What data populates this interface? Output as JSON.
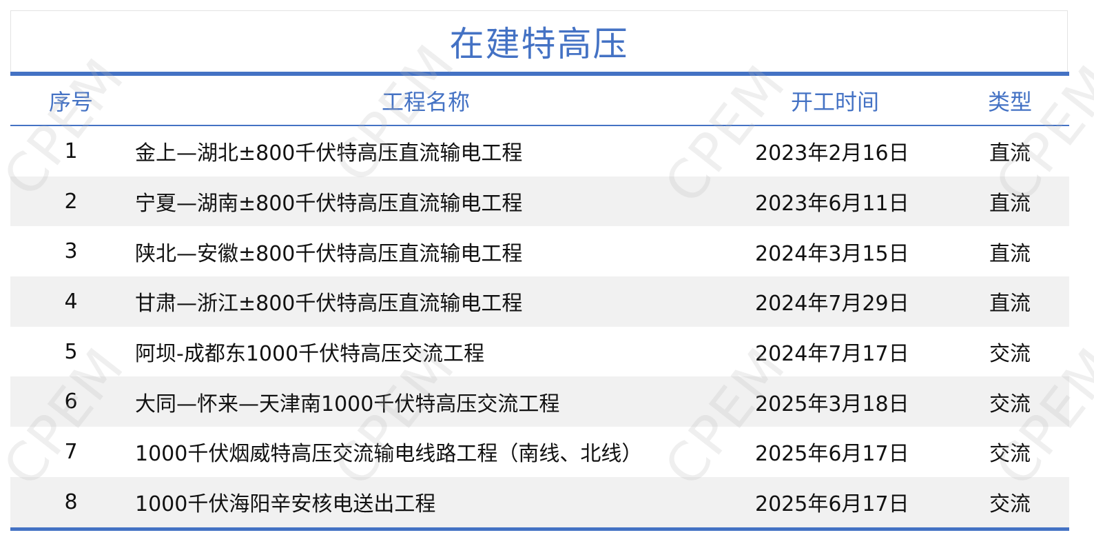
{
  "title": "在建特高压",
  "watermark": "CPEM",
  "colors": {
    "accent": "#4472c4",
    "stripe": "#f1f1f1"
  },
  "headers": {
    "seq": "序号",
    "name": "工程名称",
    "date": "开工时间",
    "type": "类型"
  },
  "rows": [
    {
      "seq": "1",
      "name": "金上—湖北±800千伏特高压直流输电工程",
      "date": "2023年2月16日",
      "type": "直流"
    },
    {
      "seq": "2",
      "name": "宁夏—湖南±800千伏特高压直流输电工程",
      "date": "2023年6月11日",
      "type": "直流"
    },
    {
      "seq": "3",
      "name": "陕北—安徽±800千伏特高压直流输电工程",
      "date": "2024年3月15日",
      "type": "直流"
    },
    {
      "seq": "4",
      "name": "甘肃—浙江±800千伏特高压直流输电工程",
      "date": "2024年7月29日",
      "type": "直流"
    },
    {
      "seq": "5",
      "name": "阿坝-成都东1000千伏特高压交流工程",
      "date": "2024年7月17日",
      "type": "交流"
    },
    {
      "seq": "6",
      "name": "大同—怀来—天津南1000千伏特高压交流工程",
      "date": "2025年3月18日",
      "type": "交流"
    },
    {
      "seq": "7",
      "name": "1000千伏烟威特高压交流输电线路工程（南线、北线）",
      "date": "2025年6月17日",
      "type": "交流"
    },
    {
      "seq": "8",
      "name": "1000千伏海阳辛安核电送出工程",
      "date": "2025年6月17日",
      "type": "交流"
    }
  ]
}
